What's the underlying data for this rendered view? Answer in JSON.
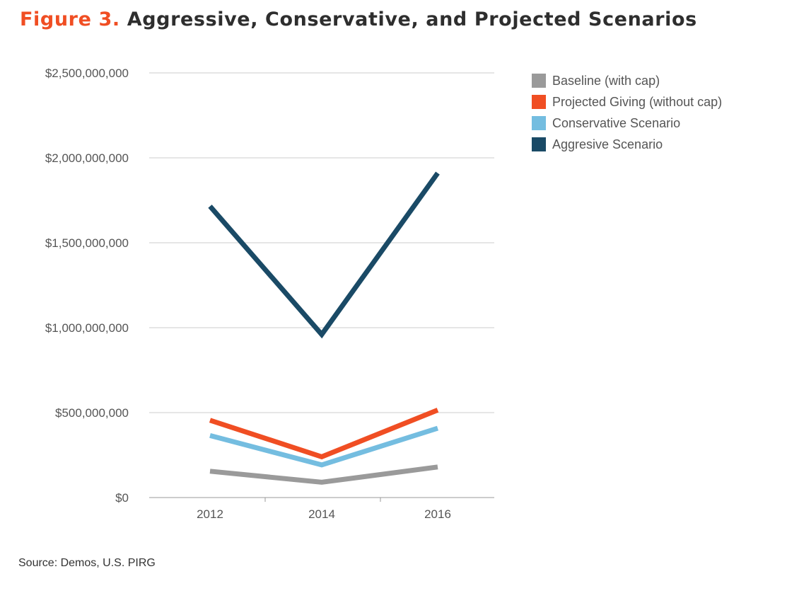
{
  "title_figure": "Figure 3.",
  "title_text": "Aggressive, Conservative, and Projected Scenarios",
  "source": "Source: Demos, U.S. PIRG",
  "chart_data": {
    "type": "line",
    "title": "Aggressive, Conservative, and Projected Scenarios",
    "xlabel": "",
    "ylabel": "",
    "categories": [
      "2012",
      "2014",
      "2016"
    ],
    "ylim": [
      0,
      2500000000
    ],
    "yticks": [
      0,
      500000000,
      1000000000,
      1500000000,
      2000000000,
      2500000000
    ],
    "ytick_labels": [
      "$0",
      "$500,000,000",
      "$1,000,000,000",
      "$1,500,000,000",
      "$2,000,000,000",
      "$2,500,000,000"
    ],
    "grid": true,
    "legend_position": "top-right",
    "series": [
      {
        "name": "Baseline (with cap)",
        "color": "#9a9a9a",
        "values": [
          155000000,
          90000000,
          180000000
        ]
      },
      {
        "name": "Projected Giving (without cap)",
        "color": "#f04e23",
        "values": [
          455000000,
          240000000,
          515000000
        ]
      },
      {
        "name": "Conservative Scenario",
        "color": "#74bde0",
        "values": [
          365000000,
          192000000,
          408000000
        ]
      },
      {
        "name": "Aggresive Scenario",
        "color": "#1a4a66",
        "values": [
          1715000000,
          960000000,
          1910000000
        ]
      }
    ]
  }
}
